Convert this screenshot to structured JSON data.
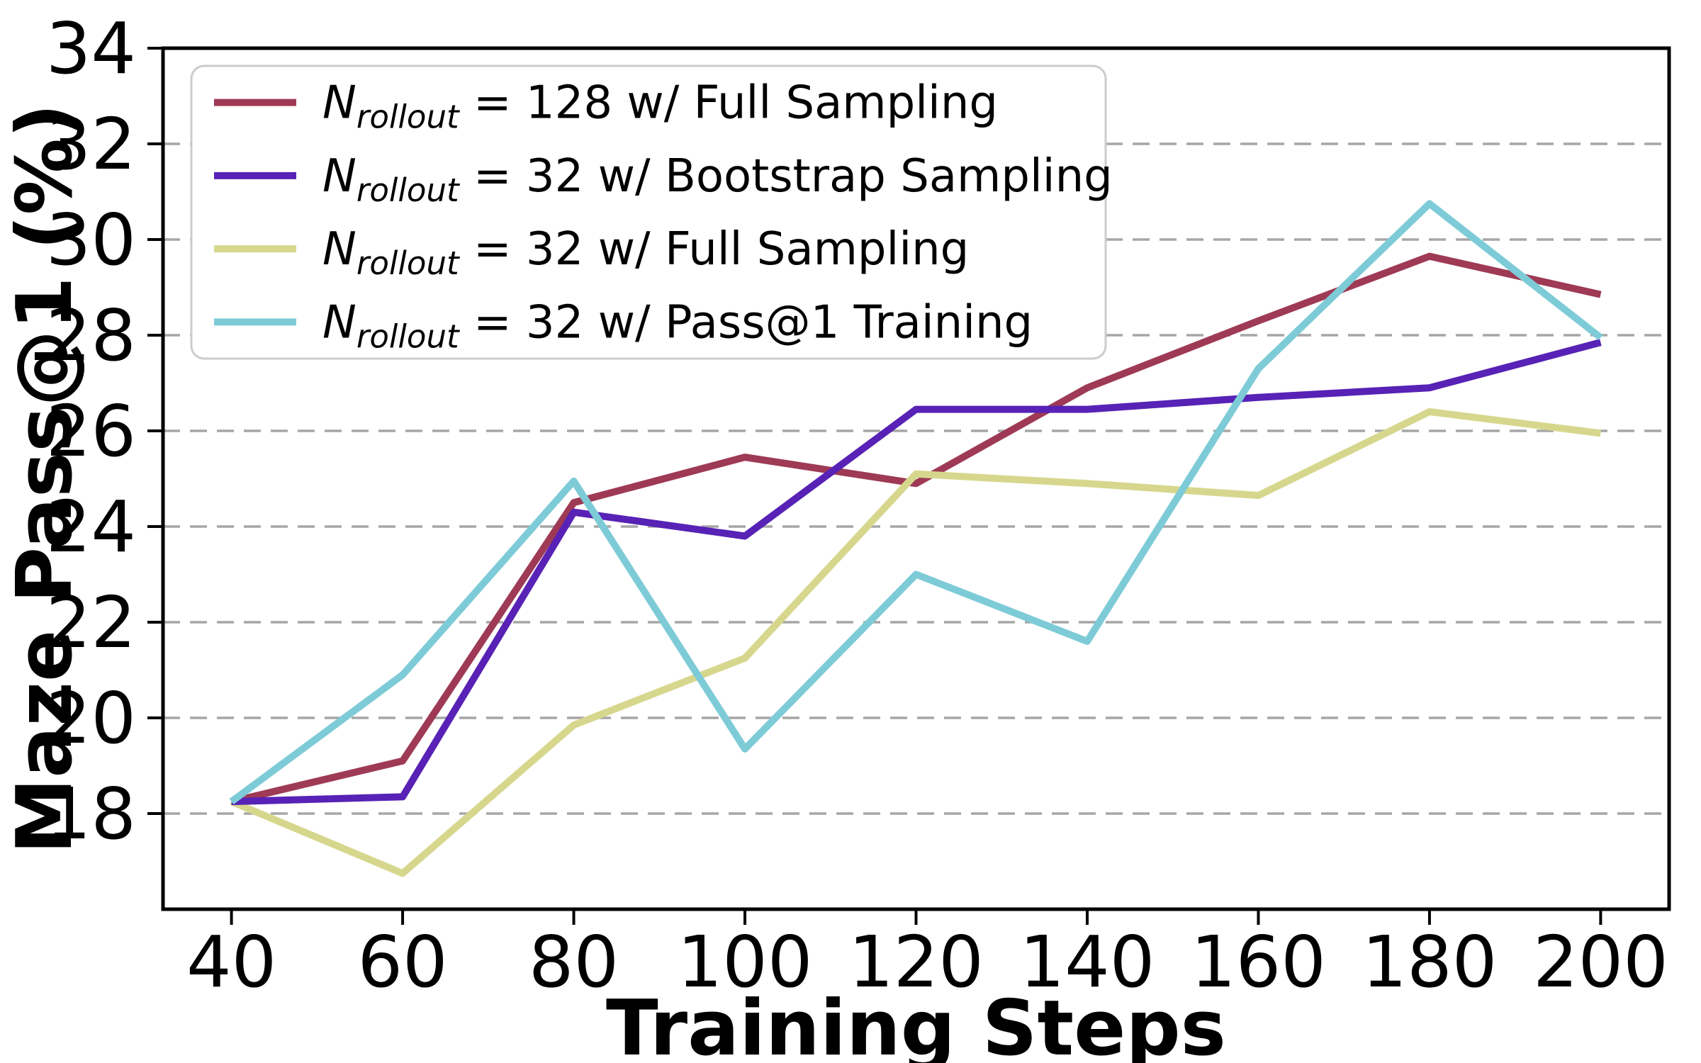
{
  "chart_data": {
    "type": "line",
    "title": "",
    "xlabel": "Training Steps",
    "ylabel": "Maze Pass@1 (%)",
    "x": [
      40,
      60,
      80,
      100,
      120,
      140,
      160,
      180,
      200
    ],
    "xticks": [
      40,
      60,
      80,
      100,
      120,
      140,
      160,
      180,
      200
    ],
    "yticks": [
      18,
      20,
      22,
      24,
      26,
      28,
      30,
      32,
      34
    ],
    "xlim": [
      32,
      208
    ],
    "ylim": [
      16,
      34
    ],
    "grid": "horizontal-dashed",
    "legend_position": "upper-left",
    "series": [
      {
        "label": "N_rollout = 128 w/ Full Sampling",
        "math_var": "N",
        "math_sub": "rollout",
        "label_rest": " = 128 w/ Full Sampling",
        "color": "#9e3a55",
        "slug": "n128-full-sampling",
        "values": [
          18.25,
          19.1,
          24.5,
          25.45,
          24.9,
          26.9,
          28.3,
          29.65,
          28.85
        ]
      },
      {
        "label": "N_rollout = 32 w/ Bootstrap Sampling",
        "math_var": "N",
        "math_sub": "rollout",
        "label_rest": " = 32 w/ Bootstrap Sampling",
        "color": "#5722b5",
        "slug": "n32-bootstrap-sampling",
        "values": [
          18.25,
          18.35,
          24.3,
          23.8,
          26.45,
          26.45,
          26.7,
          26.9,
          27.85
        ]
      },
      {
        "label": "N_rollout = 32 w/ Full Sampling",
        "math_var": "N",
        "math_sub": "rollout",
        "label_rest": " = 32 w/ Full Sampling",
        "color": "#d6d78d",
        "slug": "n32-full-sampling",
        "values": [
          18.25,
          16.75,
          19.85,
          21.25,
          25.1,
          24.9,
          24.65,
          26.4,
          25.95
        ]
      },
      {
        "label": "N_rollout = 32 w/ Pass@1 Training",
        "math_var": "N",
        "math_sub": "rollout",
        "label_rest": " = 32 w/ Pass@1 Training",
        "color": "#7ecbd8",
        "slug": "n32-pass1-training",
        "values": [
          18.25,
          20.9,
          24.95,
          19.35,
          23.0,
          21.6,
          27.3,
          30.75,
          27.95
        ]
      }
    ],
    "draw_order": [
      0,
      2,
      1,
      3
    ],
    "colors": {
      "grid": "#a6a6a6",
      "spine": "#000000",
      "legend_border": "#cccccc",
      "legend_bg": "#ffffff"
    }
  }
}
